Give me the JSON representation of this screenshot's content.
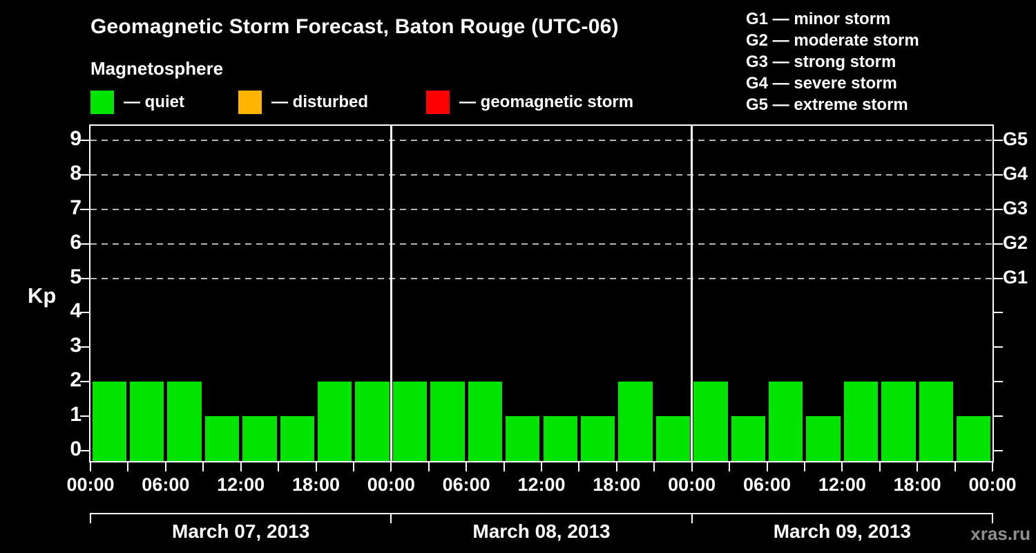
{
  "title": "Geomagnetic Storm Forecast, Baton Rouge (UTC-06)",
  "subtitle": "Magnetosphere",
  "legend": {
    "items": [
      {
        "id": "quiet",
        "label": "— quiet",
        "color": "#00E400"
      },
      {
        "id": "disturbed",
        "label": "— disturbed",
        "color": "#FFB400"
      },
      {
        "id": "storm",
        "label": "— geomagnetic storm",
        "color": "#FF0000"
      }
    ]
  },
  "g_scale_legend": [
    "G1 — minor storm",
    "G2 — moderate storm",
    "G3 — strong storm",
    "G4 — severe storm",
    "G5 — extreme storm"
  ],
  "watermark": "xras.ru",
  "chart_data": {
    "type": "bar",
    "title": "Geomagnetic Storm Forecast, Baton Rouge (UTC-06)",
    "ylabel": "Kp",
    "ylim": [
      0,
      9
    ],
    "yticks": [
      0,
      1,
      2,
      3,
      4,
      5,
      6,
      7,
      8,
      9
    ],
    "gridlines_at": [
      5,
      6,
      7,
      8,
      9
    ],
    "grid_style": "dashed",
    "interval_hours": 3,
    "x_tick_every_hours": 3,
    "x_label_every_hours": 6,
    "x_time_labels": [
      "00:00",
      "06:00",
      "12:00",
      "18:00",
      "00:00",
      "06:00",
      "12:00",
      "18:00",
      "00:00",
      "06:00",
      "12:00",
      "18:00",
      "00:00"
    ],
    "right_axis_labels": [
      {
        "kp": 9,
        "label": "G5"
      },
      {
        "kp": 8,
        "label": "G4"
      },
      {
        "kp": 7,
        "label": "G3"
      },
      {
        "kp": 6,
        "label": "G2"
      },
      {
        "kp": 5,
        "label": "G1"
      }
    ],
    "days": [
      {
        "date": "March 07, 2013",
        "values": [
          2,
          2,
          2,
          1,
          1,
          1,
          2,
          2
        ]
      },
      {
        "date": "March 08, 2013",
        "values": [
          2,
          2,
          2,
          1,
          1,
          1,
          2,
          1
        ]
      },
      {
        "date": "March 09, 2013",
        "values": [
          2,
          1,
          2,
          1,
          2,
          2,
          2,
          1
        ]
      }
    ],
    "colors": {
      "bar": "#00E400",
      "grid": "#b4b4b4",
      "axis": "#ffffff",
      "background": "#000000",
      "watermark": "#8f8f8f"
    }
  }
}
